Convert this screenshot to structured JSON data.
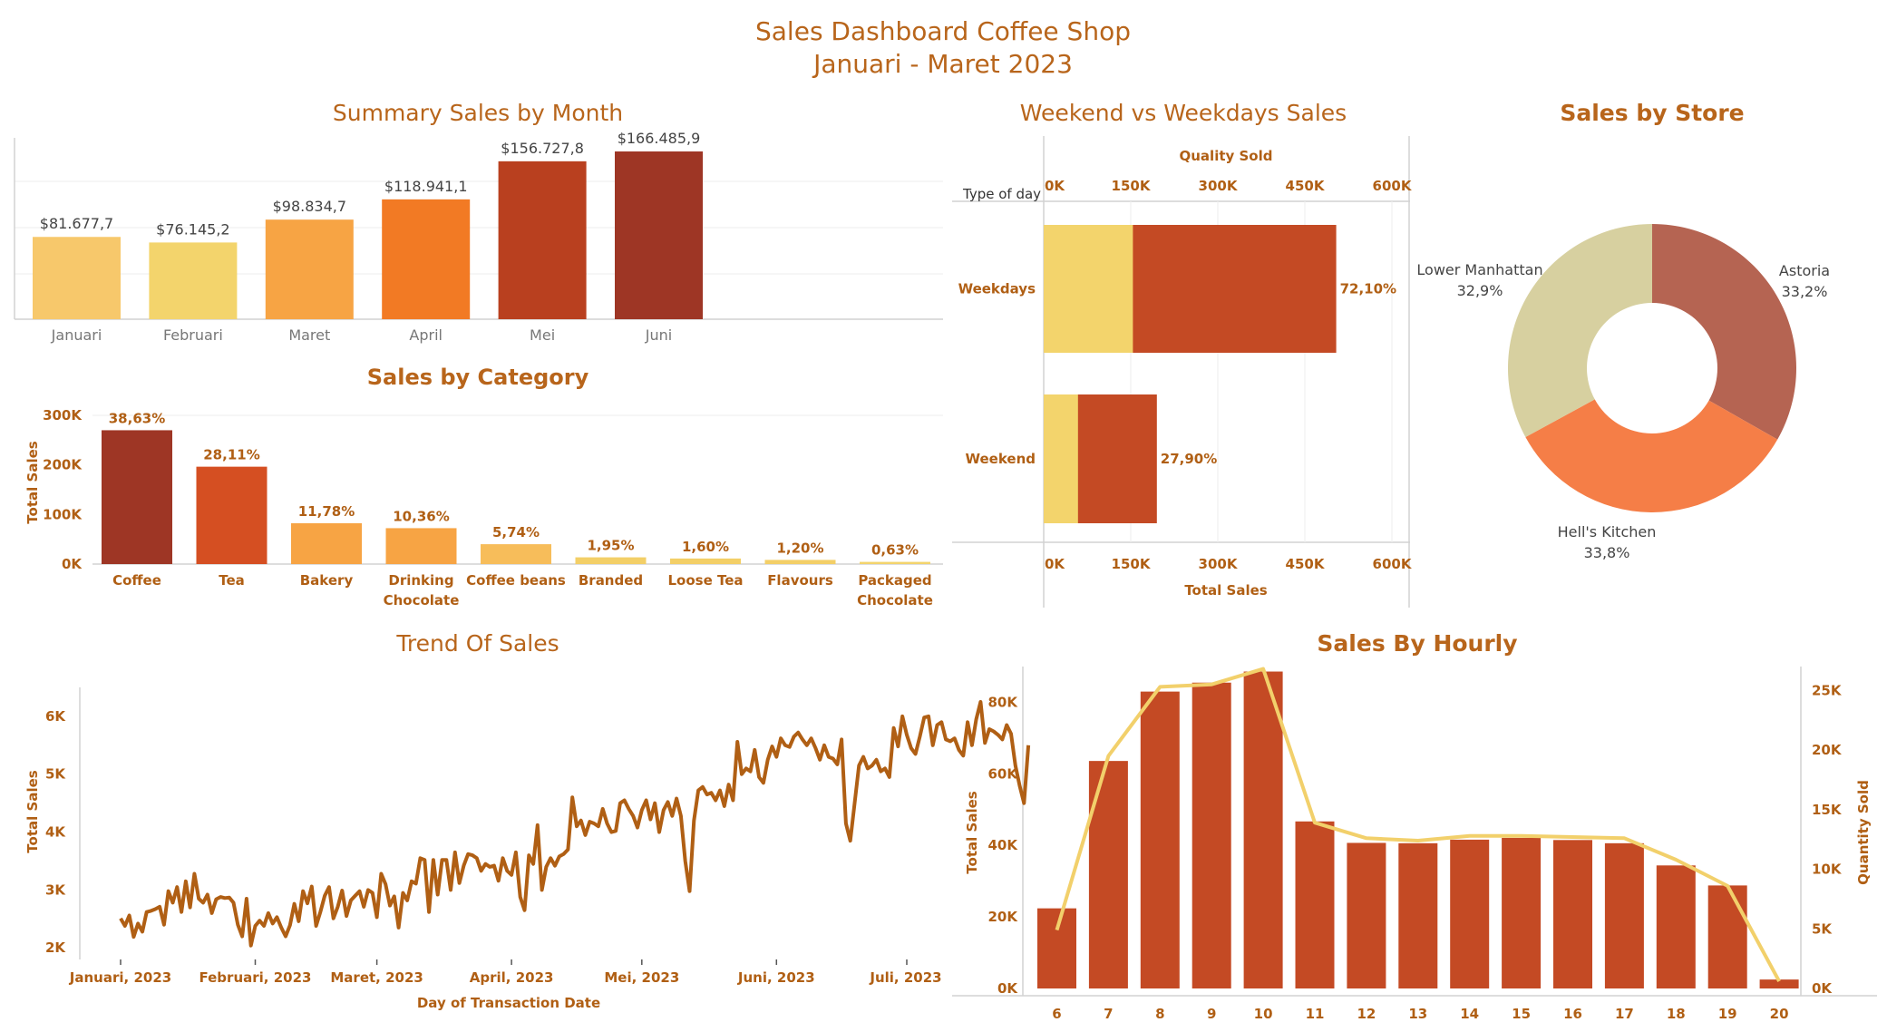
{
  "header": {
    "title": "Sales Dashboard Coffee Shop",
    "subtitle": "Januari - Maret 2023"
  },
  "chart_data": [
    {
      "id": "monthly",
      "type": "bar",
      "title": "Summary Sales by Month",
      "categories": [
        "Januari",
        "Februari",
        "Maret",
        "April",
        "Mei",
        "Juni"
      ],
      "values": [
        81677.7,
        76145.2,
        98834.7,
        118941.1,
        156727.8,
        166485.9
      ],
      "value_labels": [
        "$81.677,7",
        "$76.145,2",
        "$98.834,7",
        "$118.941,1",
        "$156.727,8",
        "$166.485,9"
      ],
      "colors": [
        "#f7c86b",
        "#f3d46c",
        "#f7a444",
        "#f27a24",
        "#b9401f",
        "#9e3625"
      ],
      "ylim": [
        0,
        180000
      ],
      "grid": true
    },
    {
      "id": "category",
      "type": "bar",
      "title": "Sales by Category",
      "ylabel": "Total Sales",
      "categories": [
        "Coffee",
        "Tea",
        "Bakery",
        "Drinking Chocolate",
        "Coffee beans",
        "Branded",
        "Loose Tea",
        "Flavours",
        "Packaged Chocolate"
      ],
      "category_lines": [
        [
          "Coffee"
        ],
        [
          "Tea"
        ],
        [
          "Bakery"
        ],
        [
          "Drinking",
          "Chocolate"
        ],
        [
          "Coffee beans"
        ],
        [
          "Branded"
        ],
        [
          "Loose Tea"
        ],
        [
          "Flavours"
        ],
        [
          "Packaged",
          "Chocolate"
        ]
      ],
      "values": [
        269952,
        196406,
        82316,
        72416,
        40085,
        13607,
        11213,
        8409,
        4408
      ],
      "value_labels": [
        "38,63%",
        "28,11%",
        "11,78%",
        "10,36%",
        "5,74%",
        "1,95%",
        "1,60%",
        "1,20%",
        "0,63%"
      ],
      "colors": [
        "#9e3625",
        "#d54f22",
        "#f7a444",
        "#f7a444",
        "#f7bd5a",
        "#f3cf67",
        "#f3cf67",
        "#f3cf67",
        "#f3d46c"
      ],
      "yticks": [
        0,
        100000,
        200000,
        300000
      ],
      "ytick_labels": [
        "0K",
        "100K",
        "200K",
        "300K"
      ],
      "ylim": [
        0,
        300000
      ]
    },
    {
      "id": "weekend",
      "type": "bar",
      "orientation": "horizontal",
      "title": "Weekend vs Weekdays Sales",
      "row_header": "Type of day",
      "top_axis_label": "Quality Sold",
      "bottom_axis_label": "Total Sales",
      "ticks": [
        0,
        150000,
        300000,
        450000,
        600000
      ],
      "tick_labels": [
        "0K",
        "150K",
        "300K",
        "450K",
        "600K"
      ],
      "xlim": [
        0,
        600000
      ],
      "categories": [
        "Weekdays",
        "Weekend"
      ],
      "series": [
        {
          "name": "Total Sales",
          "values": [
            504050,
            195011
          ],
          "color": "#c44a24"
        },
        {
          "name": "Quality Sold",
          "values": [
            153700,
            59100
          ],
          "color": "#f3d46c"
        }
      ],
      "value_labels": [
        "72,10%",
        "27,90%"
      ]
    },
    {
      "id": "store",
      "type": "pie",
      "title": "Sales by Store",
      "labels": [
        "Astoria",
        "Hell's Kitchen",
        "Lower Manhattan"
      ],
      "values": [
        33.2,
        33.8,
        32.9
      ],
      "value_labels": [
        "33,2%",
        "33,8%",
        "32,9%"
      ],
      "colors": [
        "#b56452",
        "#f57e47",
        "#d7d0a0"
      ]
    },
    {
      "id": "trend",
      "type": "line",
      "title": "Trend Of Sales",
      "xlabel": "Day of Transaction Date",
      "ylabel": "Total Sales",
      "x_start": "2023-01-01",
      "x_end": "2023-07-01",
      "x_tick_labels": [
        "Januari, 2023",
        "Februari, 2023",
        "Maret, 2023",
        "April, 2023",
        "Mei, 2023",
        "Juni, 2023",
        "Juli, 2023"
      ],
      "yticks": [
        2000,
        3000,
        4000,
        5000,
        6000
      ],
      "ytick_labels": [
        "2K",
        "3K",
        "4K",
        "5K",
        "6K"
      ],
      "ylim": [
        1800,
        6500
      ],
      "color": "#b05f14",
      "values": [
        2510,
        2380,
        2560,
        2190,
        2420,
        2280,
        2620,
        2640,
        2670,
        2710,
        2400,
        2980,
        2780,
        3050,
        2620,
        3150,
        2700,
        3280,
        2850,
        2780,
        2920,
        2600,
        2840,
        2880,
        2860,
        2870,
        2780,
        2400,
        2200,
        2850,
        2040,
        2380,
        2470,
        2380,
        2600,
        2420,
        2530,
        2350,
        2200,
        2390,
        2760,
        2460,
        2980,
        2770,
        3060,
        2380,
        2620,
        2900,
        3050,
        2510,
        2710,
        2990,
        2550,
        2820,
        2900,
        2980,
        2710,
        3000,
        2950,
        2530,
        3280,
        3100,
        2730,
        2890,
        2350,
        2950,
        2820,
        3150,
        3110,
        3550,
        3520,
        2620,
        3520,
        2920,
        3520,
        3520,
        3000,
        3650,
        3120,
        3420,
        3620,
        3600,
        3550,
        3330,
        3450,
        3400,
        3420,
        3160,
        3550,
        3330,
        3260,
        3650,
        2880,
        2650,
        3600,
        3450,
        4120,
        3000,
        3400,
        3550,
        3420,
        3580,
        3620,
        3700,
        4600,
        4100,
        4200,
        3950,
        4180,
        4150,
        4100,
        4400,
        4150,
        4000,
        4020,
        4500,
        4550,
        4400,
        4280,
        4080,
        4380,
        4550,
        4220,
        4500,
        4000,
        4380,
        4520,
        4280,
        4580,
        4280,
        3500,
        2980,
        4200,
        4720,
        4780,
        4650,
        4680,
        4550,
        4720,
        4450,
        4820,
        4550,
        5560,
        5000,
        5100,
        5050,
        5420,
        4950,
        4850,
        5250,
        5480,
        5300,
        5620,
        5500,
        5470,
        5650,
        5720,
        5600,
        5500,
        5620,
        5450,
        5250,
        5500,
        5300,
        5270,
        5170,
        5600,
        4150,
        3850,
        4500,
        5150,
        5300,
        5100,
        5150,
        5250,
        5050,
        5100,
        4950,
        5800,
        5480,
        6000,
        5680,
        5450,
        5350,
        5650,
        5980,
        6000,
        5500,
        5850,
        5900,
        5600,
        5570,
        5620,
        5420,
        5320,
        5900,
        5500,
        5950,
        6250,
        5540,
        5780,
        5740,
        5680,
        5600,
        5850,
        5700,
        5150,
        4800,
        4500,
        5500
      ]
    },
    {
      "id": "hourly",
      "type": "bar",
      "title": "Sales By Hourly",
      "ylabel": "Total Sales",
      "y2label": "Quantity Sold",
      "categories": [
        "6",
        "7",
        "8",
        "9",
        "10",
        "11",
        "12",
        "13",
        "14",
        "15",
        "16",
        "17",
        "18",
        "19",
        "20"
      ],
      "values": [
        22400,
        63600,
        83000,
        85500,
        88600,
        46700,
        40700,
        40600,
        41600,
        42100,
        41500,
        40600,
        34400,
        28800,
        2500
      ],
      "line_values": [
        4900,
        19500,
        25300,
        25500,
        26800,
        13900,
        12600,
        12400,
        12800,
        12800,
        12700,
        12600,
        10800,
        8600,
        600
      ],
      "yticks": [
        0,
        20000,
        40000,
        60000,
        80000
      ],
      "ytick_labels": [
        "0K",
        "20K",
        "40K",
        "60K",
        "80K"
      ],
      "y2ticks": [
        0,
        5000,
        10000,
        15000,
        20000,
        25000
      ],
      "y2tick_labels": [
        "0K",
        "5K",
        "10K",
        "15K",
        "20K",
        "25K"
      ],
      "ylim": [
        0,
        90000
      ],
      "y2lim": [
        0,
        27000
      ],
      "bar_color": "#c44a24",
      "line_color": "#f2d06b"
    }
  ]
}
